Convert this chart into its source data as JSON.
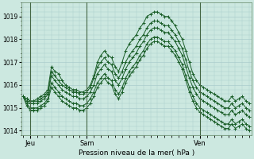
{
  "bg_color": "#cce8e0",
  "grid_color": "#aacccc",
  "line_color": "#1a5e28",
  "xlabel": "Pression niveau de la mer( hPa )",
  "ylim": [
    1013.8,
    1019.6
  ],
  "yticks": [
    1014,
    1015,
    1016,
    1017,
    1018,
    1019
  ],
  "xtick_labels": [
    "Jeu",
    "Sam",
    "Ven"
  ],
  "xtick_positions": [
    2,
    18,
    50
  ],
  "vline_positions": [
    2,
    18,
    50
  ],
  "n_points": 65,
  "figsize": [
    3.2,
    2.0
  ],
  "dpi": 100,
  "series": [
    [
      1015.5,
      1015.4,
      1015.3,
      1015.3,
      1015.4,
      1015.5,
      1015.6,
      1015.8,
      1016.8,
      1016.6,
      1016.5,
      1016.2,
      1016.0,
      1015.9,
      1015.8,
      1015.8,
      1015.7,
      1015.7,
      1015.8,
      1016.0,
      1016.4,
      1017.0,
      1017.3,
      1017.5,
      1017.3,
      1017.2,
      1016.8,
      1016.6,
      1017.0,
      1017.5,
      1017.8,
      1018.0,
      1018.2,
      1018.5,
      1018.7,
      1019.0,
      1019.1,
      1019.2,
      1019.2,
      1019.1,
      1019.0,
      1019.0,
      1018.8,
      1018.6,
      1018.3,
      1018.0,
      1017.5,
      1017.0,
      1016.5,
      1016.2,
      1016.0,
      1015.9,
      1015.8,
      1015.7,
      1015.6,
      1015.5,
      1015.4,
      1015.3,
      1015.3,
      1015.5,
      1015.3,
      1015.4,
      1015.5,
      1015.3,
      1015.2
    ],
    [
      1015.5,
      1015.4,
      1015.3,
      1015.3,
      1015.3,
      1015.4,
      1015.5,
      1015.7,
      1016.6,
      1016.4,
      1016.2,
      1016.0,
      1015.9,
      1015.8,
      1015.7,
      1015.7,
      1015.6,
      1015.6,
      1015.7,
      1015.9,
      1016.3,
      1016.8,
      1017.0,
      1017.2,
      1017.0,
      1016.9,
      1016.5,
      1016.3,
      1016.6,
      1017.0,
      1017.3,
      1017.5,
      1017.7,
      1018.0,
      1018.2,
      1018.5,
      1018.7,
      1018.8,
      1018.8,
      1018.7,
      1018.6,
      1018.6,
      1018.4,
      1018.2,
      1017.9,
      1017.6,
      1017.1,
      1016.6,
      1016.2,
      1015.9,
      1015.7,
      1015.6,
      1015.5,
      1015.4,
      1015.3,
      1015.2,
      1015.1,
      1015.0,
      1015.0,
      1015.2,
      1015.0,
      1015.1,
      1015.2,
      1015.0,
      1014.9
    ],
    [
      1015.5,
      1015.3,
      1015.2,
      1015.2,
      1015.2,
      1015.3,
      1015.4,
      1015.6,
      1016.4,
      1016.2,
      1016.0,
      1015.8,
      1015.7,
      1015.6,
      1015.5,
      1015.5,
      1015.4,
      1015.4,
      1015.5,
      1015.7,
      1016.0,
      1016.5,
      1016.7,
      1016.9,
      1016.7,
      1016.6,
      1016.2,
      1016.0,
      1016.3,
      1016.7,
      1017.0,
      1017.2,
      1017.4,
      1017.7,
      1017.9,
      1018.2,
      1018.4,
      1018.5,
      1018.5,
      1018.4,
      1018.3,
      1018.3,
      1018.1,
      1017.9,
      1017.6,
      1017.3,
      1016.8,
      1016.3,
      1015.9,
      1015.6,
      1015.4,
      1015.3,
      1015.2,
      1015.1,
      1015.0,
      1014.9,
      1014.8,
      1014.7,
      1014.7,
      1014.9,
      1014.7,
      1014.8,
      1014.9,
      1014.7,
      1014.6
    ],
    [
      1015.5,
      1015.2,
      1015.0,
      1015.0,
      1015.0,
      1015.1,
      1015.2,
      1015.4,
      1016.1,
      1015.9,
      1015.7,
      1015.5,
      1015.4,
      1015.3,
      1015.2,
      1015.2,
      1015.1,
      1015.1,
      1015.2,
      1015.4,
      1015.7,
      1016.1,
      1016.3,
      1016.5,
      1016.3,
      1016.2,
      1015.8,
      1015.6,
      1015.9,
      1016.3,
      1016.6,
      1016.8,
      1017.0,
      1017.3,
      1017.5,
      1017.8,
      1018.0,
      1018.1,
      1018.1,
      1018.0,
      1017.9,
      1017.9,
      1017.7,
      1017.5,
      1017.2,
      1016.9,
      1016.4,
      1015.9,
      1015.5,
      1015.2,
      1015.0,
      1014.9,
      1014.8,
      1014.7,
      1014.6,
      1014.5,
      1014.4,
      1014.3,
      1014.3,
      1014.5,
      1014.3,
      1014.4,
      1014.5,
      1014.3,
      1014.2
    ],
    [
      1015.5,
      1015.1,
      1014.9,
      1014.9,
      1014.9,
      1015.0,
      1015.1,
      1015.3,
      1015.9,
      1015.7,
      1015.5,
      1015.3,
      1015.2,
      1015.1,
      1015.0,
      1015.0,
      1014.9,
      1014.9,
      1015.0,
      1015.2,
      1015.5,
      1015.9,
      1016.1,
      1016.3,
      1016.1,
      1016.0,
      1015.6,
      1015.4,
      1015.7,
      1016.1,
      1016.4,
      1016.6,
      1016.8,
      1017.1,
      1017.3,
      1017.6,
      1017.8,
      1017.9,
      1017.9,
      1017.8,
      1017.7,
      1017.7,
      1017.5,
      1017.3,
      1017.0,
      1016.7,
      1016.2,
      1015.7,
      1015.3,
      1015.0,
      1014.8,
      1014.7,
      1014.6,
      1014.5,
      1014.4,
      1014.3,
      1014.2,
      1014.1,
      1014.1,
      1014.3,
      1014.1,
      1014.2,
      1014.3,
      1014.1,
      1014.0
    ]
  ]
}
